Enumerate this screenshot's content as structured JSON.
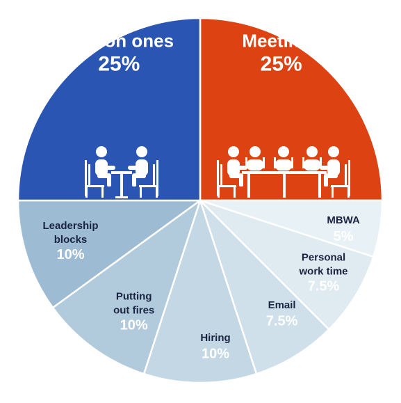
{
  "chart_data": {
    "type": "pie",
    "title": "",
    "slices": [
      {
        "name": "Meetings",
        "value": 25,
        "label": "25%",
        "color": "#dd4213",
        "label_color": "#ffffff",
        "value_color": "#ffffff",
        "icon": "conference-table-icon"
      },
      {
        "name": "MBWA",
        "value": 5,
        "label": "5%",
        "color": "#e8f1f6",
        "label_color": "#1a2440",
        "value_color": "#ffffff"
      },
      {
        "name": "Personal work time",
        "value": 7.5,
        "label": "7.5%",
        "color": "#dfeaf1",
        "label_color": "#1a2440",
        "value_color": "#ffffff"
      },
      {
        "name": "Email",
        "value": 7.5,
        "label": "7.5%",
        "color": "#d0e0eb",
        "label_color": "#1a2440",
        "value_color": "#ffffff"
      },
      {
        "name": "Hiring",
        "value": 10,
        "label": "10%",
        "color": "#c3d7e5",
        "label_color": "#1a2440",
        "value_color": "#ffffff"
      },
      {
        "name": "Putting out fires",
        "value": 10,
        "label": "10%",
        "color": "#b1cbdd",
        "label_color": "#1a2440",
        "value_color": "#ffffff"
      },
      {
        "name": "Leadership blocks",
        "value": 10,
        "label": "10%",
        "color": "#9dbcd3",
        "label_color": "#1a2440",
        "value_color": "#ffffff"
      },
      {
        "name": "One on ones",
        "value": 25,
        "label": "25%",
        "color": "#2a55b3",
        "label_color": "#ffffff",
        "value_color": "#ffffff",
        "icon": "one-on-one-meeting-icon"
      }
    ],
    "start_angle_deg": 0,
    "direction": "clockwise",
    "legend": "none"
  }
}
